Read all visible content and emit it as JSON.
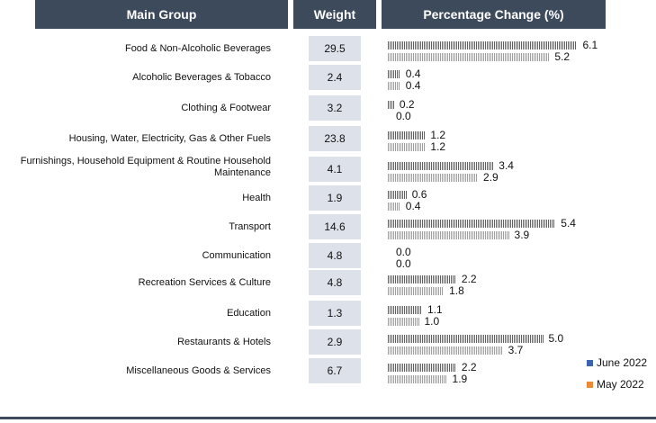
{
  "headers": {
    "group": "Main Group",
    "weight": "Weight",
    "pct": "Percentage Change (%)"
  },
  "chart_data": {
    "type": "bar",
    "orientation": "horizontal",
    "title": "",
    "columns": [
      "Main Group",
      "Weight",
      "Percentage Change (%)"
    ],
    "categories": [
      "Food & Non-Alcoholic Beverages",
      "Alcoholic Beverages & Tobacco",
      "Clothing & Footwear",
      "Housing, Water, Electricity, Gas & Other Fuels",
      "Furnishings, Household Equipment & Routine Household Maintenance",
      "Health",
      "Transport",
      "Communication",
      "Recreation Services & Culture",
      "Education",
      "Restaurants & Hotels",
      "Miscellaneous Goods & Services"
    ],
    "weights": [
      "29.5",
      "2.4",
      "3.2",
      "23.8",
      "4.1",
      "1.9",
      "14.6",
      "4.8",
      "4.8",
      "1.3",
      "2.9",
      "6.7"
    ],
    "series": [
      {
        "name": "June 2022",
        "color": "#3b63b0",
        "values": [
          6.1,
          0.4,
          0.2,
          1.2,
          3.4,
          0.6,
          5.4,
          0.0,
          2.2,
          1.1,
          5.0,
          2.2
        ]
      },
      {
        "name": "May 2022",
        "color": "#ed8b35",
        "values": [
          5.2,
          0.4,
          0.0,
          1.2,
          2.9,
          0.4,
          3.9,
          0.0,
          1.8,
          1.0,
          3.7,
          1.9
        ]
      }
    ],
    "legend": "bottom-right",
    "grid": false
  }
}
